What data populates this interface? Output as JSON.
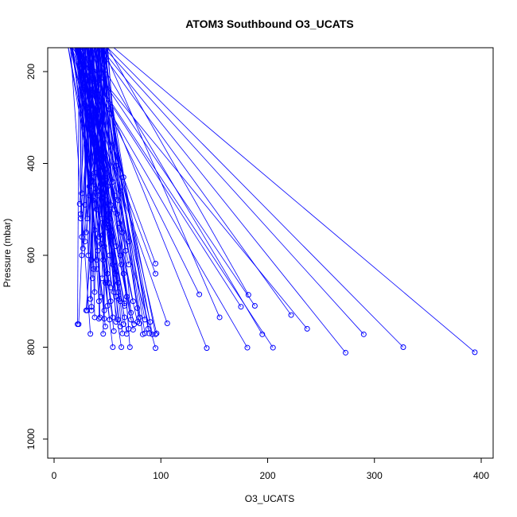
{
  "chart_data": {
    "type": "scatter",
    "title": "ATOM3 Southbound O3_UCATS",
    "xlabel": "O3_UCATS",
    "ylabel": "Pressure (mbar)",
    "xlim": [
      0,
      410
    ],
    "ylim": [
      1040,
      150
    ],
    "y_reversed": true,
    "grid": false,
    "xticks": [
      0,
      100,
      200,
      300,
      400
    ],
    "yticks": [
      200,
      400,
      600,
      800,
      1000
    ],
    "point_color": "#0000ff",
    "line_color": "#0000ff",
    "series": [
      {
        "points": [
          [
            23,
            750
          ],
          [
            22,
            750
          ],
          [
            35,
            720
          ],
          [
            30,
            720
          ],
          [
            31,
            720
          ],
          [
            38,
            735
          ],
          [
            42,
            738
          ],
          [
            47,
            738
          ],
          [
            34,
            771
          ],
          [
            46,
            771
          ],
          [
            55,
            800
          ],
          [
            63,
            800
          ],
          [
            71,
            800
          ],
          [
            95,
            802
          ],
          [
            143,
            802
          ],
          [
            181,
            801
          ],
          [
            205,
            801
          ],
          [
            273,
            812
          ],
          [
            394,
            811
          ],
          [
            327,
            800
          ],
          [
            290,
            772
          ],
          [
            237,
            760
          ],
          [
            222,
            730
          ],
          [
            195,
            772
          ],
          [
            188,
            710
          ],
          [
            182,
            686
          ],
          [
            175,
            712
          ],
          [
            155,
            735
          ],
          [
            136,
            685
          ],
          [
            106,
            748
          ],
          [
            95,
            772
          ],
          [
            92,
            772
          ],
          [
            89,
            770
          ],
          [
            85,
            770
          ],
          [
            83,
            772
          ],
          [
            80,
            748
          ],
          [
            75,
            750
          ],
          [
            65,
            750
          ],
          [
            66,
            735
          ],
          [
            60,
            740
          ],
          [
            55,
            735
          ],
          [
            52,
            740
          ],
          [
            58,
            745
          ],
          [
            62,
            755
          ],
          [
            70,
            760
          ],
          [
            72,
            740
          ],
          [
            78,
            745
          ],
          [
            90,
            745
          ],
          [
            96,
            770
          ],
          [
            68,
            771
          ],
          [
            26,
            600
          ],
          [
            27,
            585
          ],
          [
            26,
            560
          ],
          [
            25,
            520
          ],
          [
            25,
            510
          ],
          [
            24,
            488
          ],
          [
            26,
            465
          ],
          [
            29,
            490
          ],
          [
            33,
            450
          ],
          [
            35,
            430
          ],
          [
            38,
            420
          ],
          [
            42,
            425
          ],
          [
            44,
            445
          ],
          [
            48,
            470
          ],
          [
            36,
            480
          ],
          [
            40,
            500
          ],
          [
            45,
            520
          ],
          [
            50,
            540
          ],
          [
            38,
            545
          ],
          [
            42,
            560
          ],
          [
            47,
            580
          ],
          [
            52,
            600
          ],
          [
            46,
            610
          ],
          [
            40,
            630
          ],
          [
            50,
            640
          ],
          [
            55,
            620
          ],
          [
            48,
            660
          ],
          [
            56,
            680
          ],
          [
            62,
            700
          ],
          [
            66,
            710
          ],
          [
            58,
            690
          ],
          [
            53,
            700
          ],
          [
            44,
            690
          ],
          [
            38,
            680
          ],
          [
            34,
            695
          ],
          [
            35,
            712
          ],
          [
            42,
            700
          ],
          [
            60,
            660
          ],
          [
            65,
            640
          ],
          [
            70,
            620
          ],
          [
            62,
            600
          ],
          [
            58,
            580
          ],
          [
            54,
            560
          ],
          [
            52,
            520
          ],
          [
            56,
            500
          ],
          [
            60,
            480
          ],
          [
            62,
            460
          ],
          [
            65,
            430
          ],
          [
            58,
            405
          ],
          [
            55,
            440
          ],
          [
            57,
            470
          ],
          [
            53,
            490
          ],
          [
            49,
            510
          ],
          [
            48,
            530
          ],
          [
            46,
            555
          ],
          [
            44,
            575
          ],
          [
            41,
            590
          ],
          [
            40,
            610
          ],
          [
            37,
            630
          ],
          [
            36,
            650
          ],
          [
            51,
            660
          ],
          [
            57,
            640
          ],
          [
            63,
            620
          ],
          [
            67,
            590
          ],
          [
            70,
            570
          ],
          [
            64,
            550
          ],
          [
            61,
            530
          ],
          [
            59,
            510
          ],
          [
            50,
            450
          ],
          [
            47,
            430
          ],
          [
            43,
            460
          ],
          [
            41,
            470
          ],
          [
            39,
            455
          ],
          [
            37,
            440
          ],
          [
            33,
            470
          ],
          [
            31,
            520
          ],
          [
            30,
            550
          ],
          [
            29,
            570
          ],
          [
            32,
            600
          ],
          [
            35,
            610
          ],
          [
            45,
            650
          ],
          [
            53,
            670
          ],
          [
            60,
            680
          ],
          [
            68,
            690
          ],
          [
            74,
            700
          ],
          [
            95,
            640
          ],
          [
            95,
            618
          ],
          [
            85,
            740
          ],
          [
            88,
            760
          ],
          [
            74,
            762
          ],
          [
            64,
            770
          ],
          [
            56,
            765
          ],
          [
            48,
            755
          ],
          [
            43,
            735
          ],
          [
            80,
            735
          ],
          [
            72,
            725
          ],
          [
            78,
            715
          ],
          [
            66,
            705
          ],
          [
            61,
            695
          ],
          [
            47,
            720
          ],
          [
            50,
            710
          ]
        ]
      }
    ]
  }
}
